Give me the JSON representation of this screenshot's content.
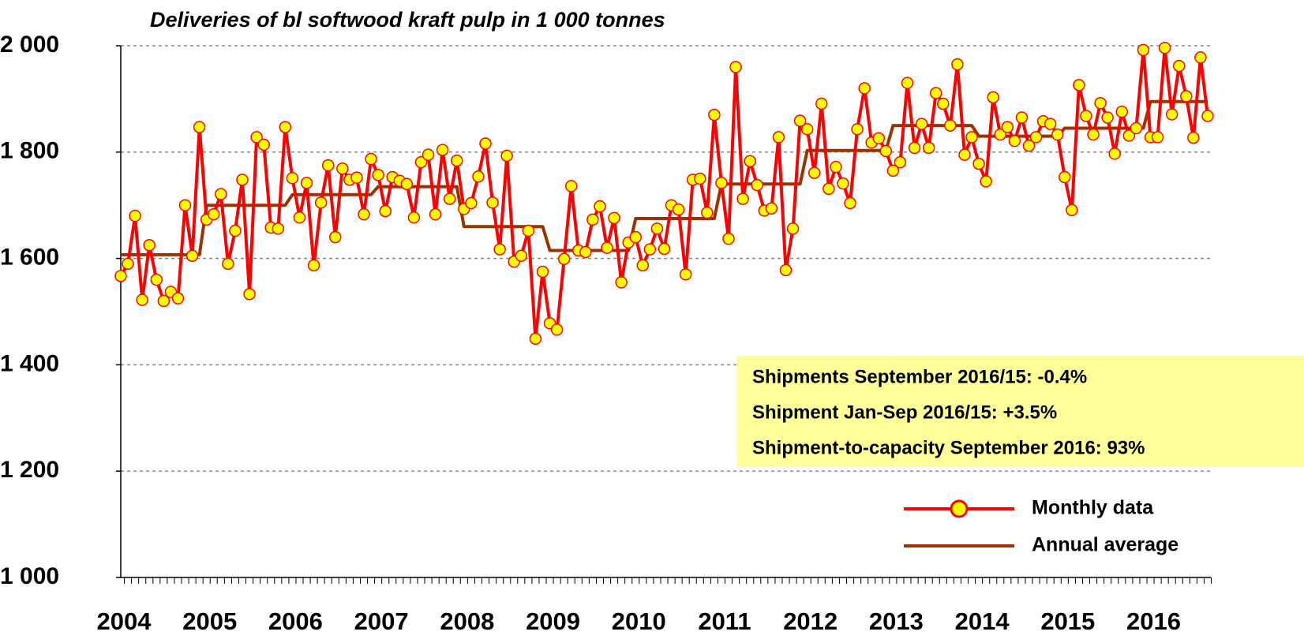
{
  "chart_data": {
    "type": "line",
    "title": "Deliveries of bl softwood kraft pulp in 1 000 tonnes",
    "categories": [
      "2004",
      null,
      null,
      null,
      null,
      null,
      null,
      null,
      null,
      null,
      null,
      null,
      "2005",
      null,
      null,
      null,
      null,
      null,
      null,
      null,
      null,
      null,
      null,
      null,
      "2006",
      null,
      null,
      null,
      null,
      null,
      null,
      null,
      null,
      null,
      null,
      null,
      "2007",
      null,
      null,
      null,
      null,
      null,
      null,
      null,
      null,
      null,
      null,
      null,
      "2008",
      null,
      null,
      null,
      null,
      null,
      null,
      null,
      null,
      null,
      null,
      null,
      "2009",
      null,
      null,
      null,
      null,
      null,
      null,
      null,
      null,
      null,
      null,
      null,
      "2010",
      null,
      null,
      null,
      null,
      null,
      null,
      null,
      null,
      null,
      null,
      null,
      "2011",
      null,
      null,
      null,
      null,
      null,
      null,
      null,
      null,
      null,
      null,
      null,
      "2012",
      null,
      null,
      null,
      null,
      null,
      null,
      null,
      null,
      null,
      null,
      null,
      "2013",
      null,
      null,
      null,
      null,
      null,
      null,
      null,
      null,
      null,
      null,
      null,
      "2014",
      null,
      null,
      null,
      null,
      null,
      null,
      null,
      null,
      null,
      null,
      null,
      "2015",
      null,
      null,
      null,
      null,
      null,
      null,
      null,
      null,
      null,
      null,
      null,
      "2016",
      null,
      null,
      null,
      null,
      null,
      null,
      null,
      null
    ],
    "series": [
      {
        "name": "Monthly data",
        "color": "#ff0000",
        "marker_color": "#ffff00",
        "values": [
          1567,
          1590,
          1680,
          1522,
          1625,
          1560,
          1520,
          1537,
          1525,
          1700,
          1605,
          1847,
          1673,
          1683,
          1721,
          1590,
          1652,
          1748,
          1533,
          1828,
          1814,
          1658,
          1656,
          1847,
          1751,
          1677,
          1742,
          1587,
          1705,
          1775,
          1640,
          1769,
          1748,
          1752,
          1683,
          1787,
          1757,
          1689,
          1753,
          1746,
          1740,
          1677,
          1781,
          1795,
          1683,
          1804,
          1712,
          1784,
          1693,
          1704,
          1754,
          1816,
          1705,
          1617,
          1793,
          1594,
          1605,
          1652,
          1449,
          1575,
          1478,
          1466,
          1599,
          1736,
          1615,
          1612,
          1673,
          1698,
          1620,
          1676,
          1555,
          1630,
          1640,
          1587,
          1617,
          1656,
          1618,
          1700,
          1692,
          1570,
          1748,
          1750,
          1686,
          1870,
          1742,
          1637,
          1960,
          1712,
          1783,
          1738,
          1690,
          1694,
          1828,
          1578,
          1656,
          1859,
          1843,
          1761,
          1891,
          1731,
          1772,
          1741,
          1704,
          1843,
          1920,
          1818,
          1826,
          1802,
          1765,
          1781,
          1930,
          1808,
          1853,
          1808,
          1911,
          1891,
          1850,
          1965,
          1795,
          1828,
          1778,
          1745,
          1903,
          1833,
          1847,
          1821,
          1865,
          1812,
          1828,
          1858,
          1853,
          1833,
          1753,
          1691,
          1926,
          1868,
          1833,
          1892,
          1865,
          1797,
          1876,
          1831,
          1845,
          1992,
          1828,
          1828,
          1996,
          1871,
          1962,
          1905,
          1827,
          1978,
          1868
        ]
      },
      {
        "name": "Annual average",
        "color": "#993300",
        "values": [
          1607,
          1607,
          1607,
          1607,
          1607,
          1607,
          1607,
          1607,
          1607,
          1607,
          1607,
          1607,
          1700,
          1700,
          1700,
          1700,
          1700,
          1700,
          1700,
          1700,
          1700,
          1700,
          1700,
          1700,
          1720,
          1720,
          1720,
          1720,
          1720,
          1720,
          1720,
          1720,
          1720,
          1720,
          1720,
          1720,
          1735,
          1735,
          1735,
          1735,
          1735,
          1735,
          1735,
          1735,
          1735,
          1735,
          1735,
          1735,
          1660,
          1660,
          1660,
          1660,
          1660,
          1660,
          1660,
          1660,
          1660,
          1660,
          1660,
          1660,
          1615,
          1615,
          1615,
          1615,
          1615,
          1615,
          1615,
          1615,
          1615,
          1615,
          1615,
          1615,
          1675,
          1675,
          1675,
          1675,
          1675,
          1675,
          1675,
          1675,
          1675,
          1675,
          1675,
          1675,
          1740,
          1740,
          1740,
          1740,
          1740,
          1740,
          1740,
          1740,
          1740,
          1740,
          1740,
          1740,
          1803,
          1803,
          1803,
          1803,
          1803,
          1803,
          1803,
          1803,
          1803,
          1803,
          1803,
          1803,
          1850,
          1850,
          1850,
          1850,
          1850,
          1850,
          1850,
          1850,
          1850,
          1850,
          1850,
          1850,
          1830,
          1830,
          1830,
          1830,
          1830,
          1830,
          1830,
          1830,
          1830,
          1830,
          1830,
          1830,
          1845,
          1845,
          1845,
          1845,
          1845,
          1845,
          1845,
          1845,
          1845,
          1845,
          1845,
          1845,
          1895,
          1895,
          1895,
          1895,
          1895,
          1895,
          1895,
          1895,
          1895
        ]
      }
    ],
    "ylim": [
      1000,
      2000
    ],
    "yticks": [
      {
        "value": 1000,
        "label": "1 000"
      },
      {
        "value": 1200,
        "label": "1 200"
      },
      {
        "value": 1400,
        "label": "1 400"
      },
      {
        "value": 1600,
        "label": "1 600"
      },
      {
        "value": 1800,
        "label": "1 800"
      },
      {
        "value": 2000,
        "label": "2 000"
      }
    ],
    "grid": true,
    "legend": "lower right",
    "annotations": [
      "Shipments September 2016/15:  -0.4%",
      "Shipment Jan-Sep 2016/15:  +3.5%",
      "Shipment-to-capacity September 2016: 93%"
    ],
    "annotation_color": "#ffff99"
  }
}
